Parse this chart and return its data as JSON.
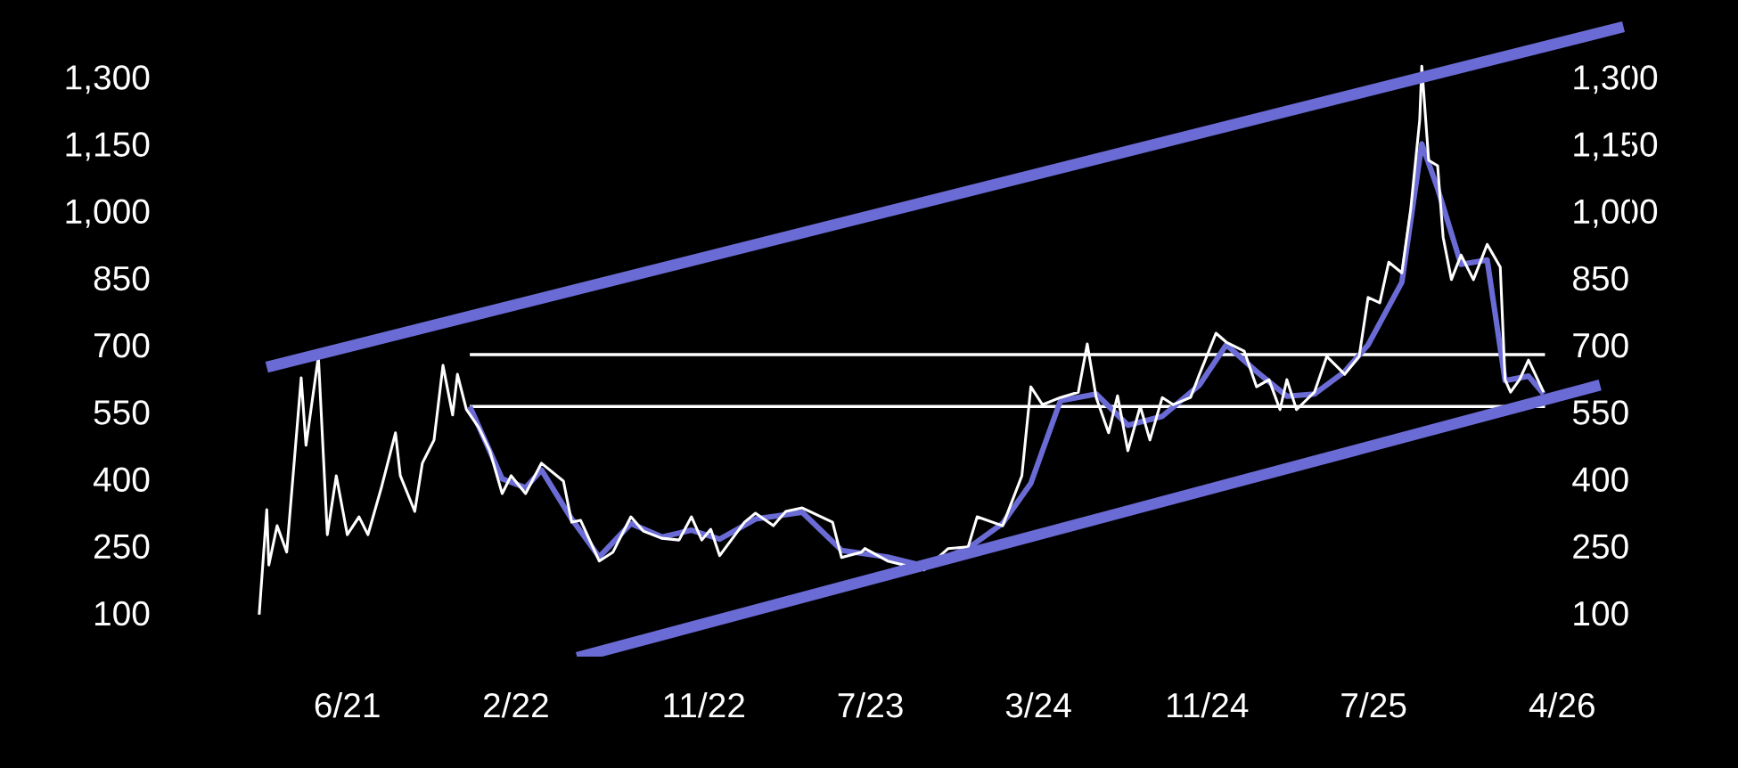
{
  "chart_data": {
    "type": "line",
    "xlim": [
      "2021-01-10",
      "2026-07-10"
    ],
    "xticks": [
      {
        "value": "2021-06-01",
        "label": "6/21"
      },
      {
        "value": "2022-02-01",
        "label": "2/22"
      },
      {
        "value": "2022-11-01",
        "label": "11/22"
      },
      {
        "value": "2023-07-01",
        "label": "7/23"
      },
      {
        "value": "2024-03-01",
        "label": "3/24"
      },
      {
        "value": "2024-11-01",
        "label": "11/24"
      },
      {
        "value": "2025-07-01",
        "label": "7/25"
      },
      {
        "value": "2026-04-01",
        "label": "4/26"
      }
    ],
    "ylim": [
      0,
      1440
    ],
    "yticks": [
      100,
      250,
      400,
      550,
      700,
      850,
      {
        "value": 1000,
        "label": "1,000"
      },
      {
        "value": 1150,
        "label": "1,150"
      },
      {
        "value": 1300,
        "label": "1,300"
      }
    ],
    "y2lim": [
      0,
      1440
    ],
    "y2ticks": [
      100,
      250,
      400,
      550,
      700,
      850,
      {
        "value": 1000,
        "label": "1,000"
      },
      {
        "value": 1150,
        "label": "1,150"
      },
      {
        "value": 1300,
        "label": "1,300"
      }
    ],
    "grid": false,
    "legend": false,
    "marker": "none",
    "line_style": "solid",
    "series": [
      {
        "color": "#ffffff",
        "x": [
          "2021-01-24",
          "2021-02-04",
          "2021-02-07",
          "2021-02-19",
          "2021-03-05",
          "2021-03-26",
          "2021-04-02",
          "2021-04-20",
          "2021-05-03",
          "2021-05-16",
          "2021-06-01",
          "2021-06-18",
          "2021-07-01",
          "2021-07-21",
          "2021-08-10",
          "2021-08-17",
          "2021-09-07",
          "2021-09-18",
          "2021-10-05",
          "2021-10-18",
          "2021-11-01",
          "2021-11-08",
          "2021-11-21",
          "2021-12-09",
          "2021-12-25",
          "2022-01-12",
          "2022-01-25",
          "2022-02-15",
          "2022-03-10",
          "2022-04-11",
          "2022-04-23",
          "2022-05-06",
          "2022-06-02",
          "2022-06-22",
          "2022-07-18",
          "2022-08-05",
          "2022-09-01",
          "2022-09-26",
          "2022-10-14",
          "2022-10-29",
          "2022-11-11",
          "2022-11-24",
          "2022-12-30",
          "2023-01-15",
          "2023-02-10",
          "2023-02-28",
          "2023-03-24",
          "2023-05-07",
          "2023-05-20",
          "2023-06-18",
          "2023-06-23",
          "2023-07-26",
          "2023-09-17",
          "2023-10-22",
          "2023-11-20",
          "2023-12-03",
          "2024-01-09",
          "2024-02-06",
          "2024-02-19",
          "2024-03-07",
          "2024-04-02",
          "2024-04-28",
          "2024-05-11",
          "2024-05-24",
          "2024-06-11",
          "2024-06-24",
          "2024-07-09",
          "2024-07-27",
          "2024-08-10",
          "2024-08-28",
          "2024-09-13",
          "2024-10-08",
          "2024-10-21",
          "2024-11-14",
          "2024-11-29",
          "2024-12-25",
          "2025-01-12",
          "2025-01-30",
          "2025-02-15",
          "2025-02-25",
          "2025-03-11",
          "2025-04-06",
          "2025-04-24",
          "2025-05-20",
          "2025-06-10",
          "2025-06-23",
          "2025-07-10",
          "2025-07-23",
          "2025-08-11",
          "2025-08-24",
          "2025-09-06",
          "2025-09-09",
          "2025-09-19",
          "2025-10-02",
          "2025-10-10",
          "2025-10-22",
          "2025-11-05",
          "2025-11-23",
          "2025-12-13",
          "2026-01-01",
          "2026-01-08",
          "2026-01-16",
          "2026-01-29",
          "2026-02-11",
          "2026-03-05"
        ],
        "values": [
          96,
          331,
          207,
          295,
          236,
          626,
          475,
          674,
          275,
          407,
          275,
          315,
          275,
          383,
          503,
          407,
          327,
          435,
          487,
          654,
          543,
          634,
          555,
          515,
          463,
          367,
          407,
          367,
          435,
          395,
          303,
          307,
          216,
          236,
          315,
          283,
          267,
          263,
          315,
          263,
          287,
          228,
          303,
          323,
          295,
          327,
          335,
          303,
          224,
          236,
          244,
          216,
          196,
          244,
          248,
          315,
          295,
          407,
          606,
          566,
          582,
          594,
          702,
          582,
          503,
          586,
          463,
          562,
          487,
          582,
          566,
          582,
          634,
          726,
          706,
          686,
          606,
          622,
          555,
          622,
          555,
          594,
          674,
          634,
          674,
          806,
          794,
          885,
          861,
          1005,
          1204,
          1324,
          1113,
          1101,
          941,
          846,
          901,
          846,
          925,
          874,
          622,
          594,
          622,
          666,
          594
        ]
      },
      {
        "color": "#6b6bd6",
        "x": [
          "2021-11-26",
          "2022-01-12",
          "2022-02-15",
          "2022-03-10",
          "2022-04-23",
          "2022-06-02",
          "2022-07-18",
          "2022-09-01",
          "2022-10-14",
          "2022-11-24",
          "2023-01-15",
          "2023-03-24",
          "2023-05-20",
          "2023-07-26",
          "2023-09-17",
          "2023-11-20",
          "2024-01-09",
          "2024-02-19",
          "2024-04-02",
          "2024-05-24",
          "2024-07-09",
          "2024-08-28",
          "2024-10-21",
          "2024-11-29",
          "2025-01-12",
          "2025-02-25",
          "2025-04-06",
          "2025-05-20",
          "2025-06-23",
          "2025-08-11",
          "2025-09-09",
          "2025-10-02",
          "2025-11-05",
          "2025-12-13",
          "2026-01-08",
          "2026-02-11",
          "2026-03-05"
        ],
        "values": [
          562,
          400,
          380,
          420,
          310,
          225,
          300,
          270,
          285,
          265,
          310,
          325,
          240,
          225,
          205,
          245,
          300,
          390,
          575,
          590,
          520,
          540,
          610,
          700,
          640,
          585,
          590,
          640,
          700,
          840,
          1150,
          1050,
          880,
          890,
          620,
          630,
          590
        ]
      },
      {
        "color": "#ffffff",
        "x": [
          "2021-11-26",
          "2026-03-07"
        ],
        "values": [
          678,
          678
        ]
      },
      {
        "color": "#ffffff",
        "x": [
          "2021-11-26",
          "2026-03-07"
        ],
        "values": [
          562,
          562
        ]
      },
      {
        "color": "#6b6bd6",
        "x": [
          "2021-02-04",
          "2026-06-29"
        ],
        "values": [
          650,
          1412
        ]
      },
      {
        "color": "#6b6bd6",
        "x": [
          "2022-05-01",
          "2026-05-26"
        ],
        "values": [
          0,
          610
        ]
      }
    ]
  }
}
